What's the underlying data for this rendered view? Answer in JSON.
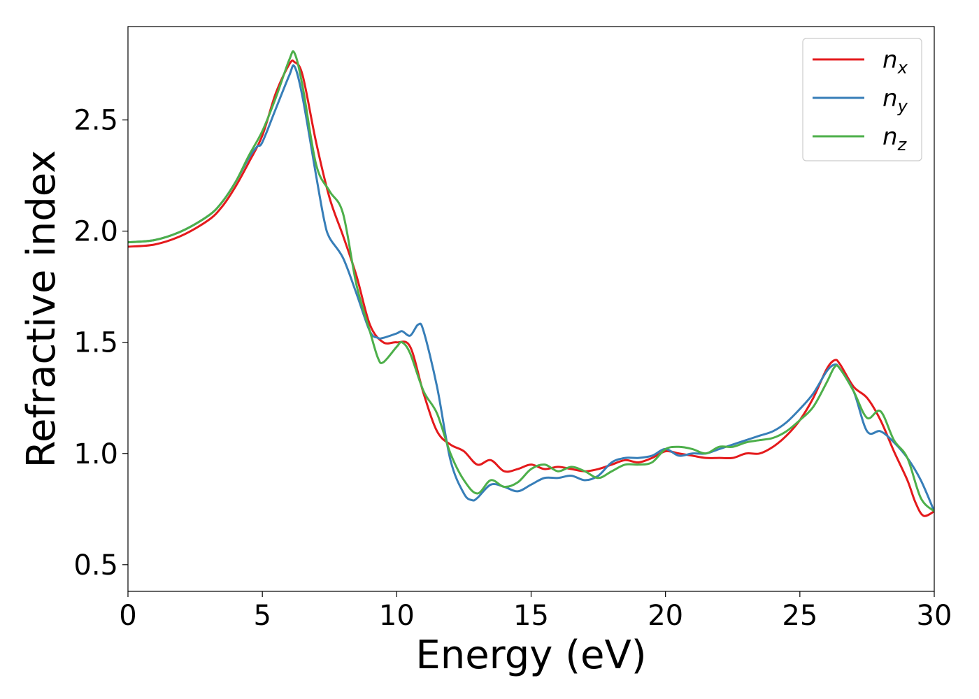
{
  "chart_data": {
    "type": "line",
    "xlabel": "Energy (eV)",
    "ylabel": "Refractive index",
    "xlim": [
      0,
      30
    ],
    "ylim": [
      0.38,
      2.92
    ],
    "xticks": [
      0,
      5,
      10,
      15,
      20,
      25,
      30
    ],
    "xtick_labels": [
      "0",
      "5",
      "10",
      "15",
      "20",
      "25",
      "30"
    ],
    "yticks": [
      0.5,
      1.0,
      1.5,
      2.0,
      2.5
    ],
    "ytick_labels": [
      "0.5",
      "1.0",
      "1.5",
      "2.0",
      "2.5"
    ],
    "grid": false,
    "legend_placement": "top-right",
    "series": [
      {
        "name": "n",
        "subscript": "x",
        "color": "#e41a1c",
        "x": [
          0,
          1,
          2,
          3,
          3.5,
          4,
          4.5,
          5,
          5.5,
          6,
          6.2,
          6.5,
          7,
          7.5,
          8,
          8.5,
          9,
          9.5,
          10,
          10.5,
          11,
          11.5,
          12,
          12.5,
          13,
          13.5,
          14,
          14.5,
          15,
          15.5,
          16,
          16.5,
          17,
          17.5,
          18,
          18.5,
          19,
          19.5,
          20,
          20.5,
          21,
          21.5,
          22,
          22.5,
          23,
          23.5,
          24,
          24.5,
          25,
          25.5,
          26,
          26.3,
          26.5,
          27,
          27.5,
          28,
          28.5,
          29,
          29.3,
          29.6,
          30
        ],
        "y": [
          1.93,
          1.94,
          1.98,
          2.05,
          2.11,
          2.2,
          2.31,
          2.43,
          2.62,
          2.75,
          2.76,
          2.7,
          2.4,
          2.15,
          1.98,
          1.8,
          1.58,
          1.5,
          1.5,
          1.48,
          1.27,
          1.1,
          1.04,
          1.01,
          0.95,
          0.97,
          0.92,
          0.93,
          0.95,
          0.93,
          0.94,
          0.93,
          0.92,
          0.93,
          0.95,
          0.97,
          0.96,
          0.98,
          1.01,
          1.0,
          0.99,
          0.98,
          0.98,
          0.98,
          1.0,
          1.0,
          1.03,
          1.08,
          1.15,
          1.25,
          1.38,
          1.42,
          1.4,
          1.3,
          1.25,
          1.15,
          1.01,
          0.88,
          0.78,
          0.72,
          0.74
        ]
      },
      {
        "name": "n",
        "subscript": "y",
        "color": "#377eb8",
        "x": [
          0,
          1,
          2,
          3,
          3.5,
          4,
          4.5,
          4.8,
          5,
          5.5,
          6,
          6.2,
          6.5,
          7,
          7.3,
          7.5,
          8,
          8.5,
          9,
          9.3,
          9.5,
          10,
          10.2,
          10.5,
          10.8,
          11,
          11.5,
          12,
          12.5,
          12.8,
          13,
          13.5,
          14,
          14.5,
          15,
          15.5,
          16,
          16.5,
          17,
          17.5,
          18,
          18.5,
          19,
          19.5,
          20,
          20.5,
          21,
          21.5,
          22,
          22.5,
          23,
          23.5,
          24,
          24.5,
          25,
          25.5,
          26,
          26.3,
          26.5,
          27,
          27.5,
          28,
          28.5,
          29,
          29.5,
          30
        ],
        "y": [
          1.95,
          1.96,
          2.0,
          2.07,
          2.13,
          2.22,
          2.33,
          2.38,
          2.4,
          2.55,
          2.7,
          2.74,
          2.6,
          2.25,
          2.05,
          1.97,
          1.88,
          1.72,
          1.55,
          1.52,
          1.52,
          1.54,
          1.55,
          1.53,
          1.58,
          1.55,
          1.3,
          0.97,
          0.82,
          0.79,
          0.8,
          0.86,
          0.85,
          0.83,
          0.86,
          0.89,
          0.89,
          0.9,
          0.88,
          0.9,
          0.96,
          0.98,
          0.98,
          0.99,
          1.02,
          0.99,
          1.0,
          1.0,
          1.02,
          1.04,
          1.06,
          1.08,
          1.1,
          1.14,
          1.2,
          1.27,
          1.37,
          1.4,
          1.38,
          1.28,
          1.1,
          1.1,
          1.05,
          0.98,
          0.88,
          0.74
        ]
      },
      {
        "name": "n",
        "subscript": "z",
        "color": "#4daf4a",
        "x": [
          0,
          1,
          2,
          3,
          3.5,
          4,
          4.5,
          5,
          5.5,
          6,
          6.2,
          6.5,
          7,
          7.5,
          8,
          8.5,
          9,
          9.3,
          9.5,
          10,
          10.2,
          10.5,
          11,
          11.5,
          12,
          12.5,
          13,
          13.5,
          14,
          14.5,
          15,
          15.5,
          16,
          16.5,
          17,
          17.5,
          18,
          18.5,
          19,
          19.5,
          20,
          20.5,
          21,
          21.5,
          22,
          22.5,
          23,
          23.5,
          24,
          24.5,
          25,
          25.5,
          26,
          26.3,
          26.5,
          27,
          27.5,
          28,
          28.5,
          29,
          29.5,
          30
        ],
        "y": [
          1.95,
          1.96,
          2.0,
          2.07,
          2.13,
          2.22,
          2.34,
          2.45,
          2.6,
          2.77,
          2.8,
          2.65,
          2.3,
          2.18,
          2.08,
          1.76,
          1.55,
          1.43,
          1.41,
          1.48,
          1.5,
          1.45,
          1.28,
          1.18,
          1.0,
          0.88,
          0.82,
          0.88,
          0.85,
          0.87,
          0.93,
          0.95,
          0.92,
          0.94,
          0.92,
          0.89,
          0.92,
          0.95,
          0.95,
          0.96,
          1.02,
          1.03,
          1.02,
          1.0,
          1.03,
          1.03,
          1.05,
          1.06,
          1.07,
          1.1,
          1.15,
          1.21,
          1.32,
          1.39,
          1.38,
          1.28,
          1.16,
          1.19,
          1.06,
          0.98,
          0.8,
          0.74
        ]
      }
    ]
  }
}
